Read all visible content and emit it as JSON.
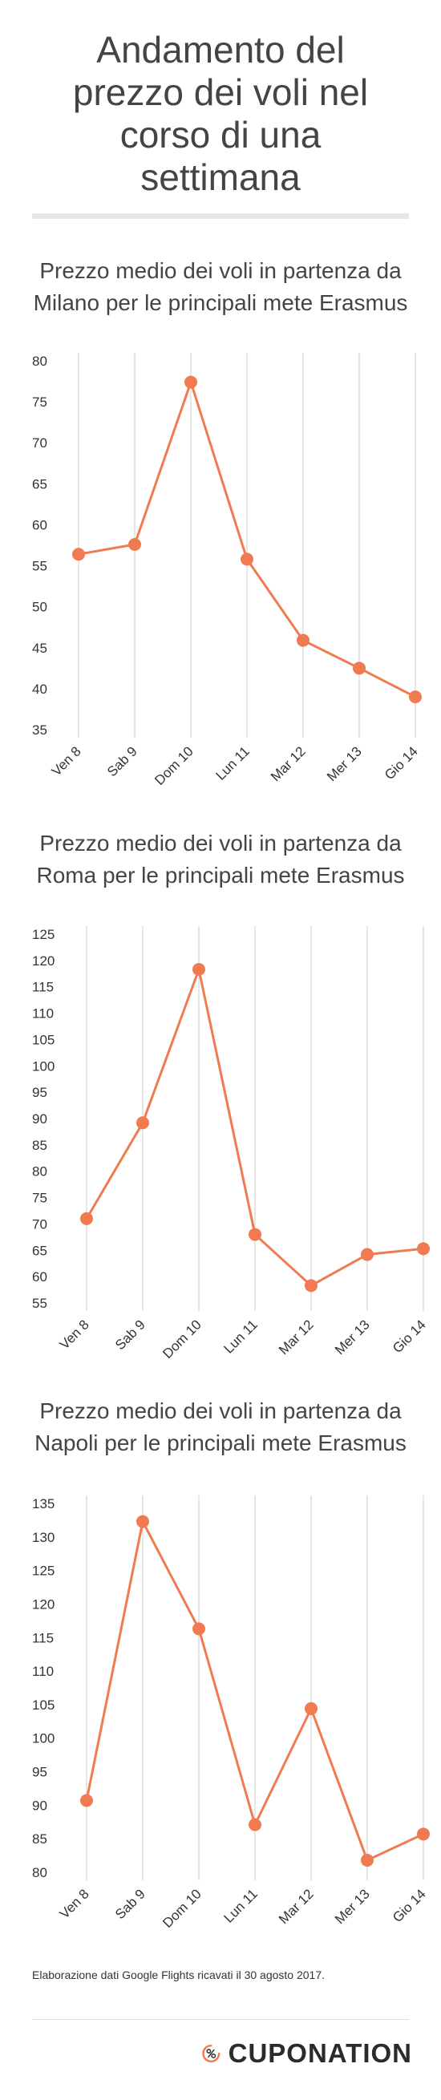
{
  "page": {
    "title": "Andamento del prezzo dei voli nel corso di una settimana",
    "title_lines": [
      "Andamento del",
      "prezzo dei voli nel",
      "corso di una",
      "settimana"
    ]
  },
  "colors": {
    "line": "#f07b50",
    "grid": "#cccccc",
    "text": "#333333"
  },
  "chart_data": [
    {
      "type": "line",
      "title": "Prezzo medio dei voli in partenza da Milano per le principali mete Erasmus",
      "title_lines": [
        "Prezzo medio dei voli in partenza da",
        "Milano per le principali mete Erasmus"
      ],
      "categories": [
        "Ven 8",
        "Sab 9",
        "Dom 10",
        "Lun 11",
        "Mar 12",
        "Mer 13",
        "Gio 14"
      ],
      "values": [
        56.4,
        57.6,
        77.4,
        55.8,
        45.9,
        42.5,
        39.0
      ],
      "ylim": [
        35,
        80
      ],
      "yticks": [
        35,
        40,
        45,
        50,
        55,
        60,
        65,
        70,
        75,
        80
      ],
      "grid": "vertical"
    },
    {
      "type": "line",
      "title": "Prezzo medio dei voli in partenza da Roma per le principali mete Erasmus",
      "title_lines": [
        "Prezzo medio dei voli in partenza da",
        "Roma per le principali mete Erasmus"
      ],
      "categories": [
        "Ven 8",
        "Sab 9",
        "Dom 10",
        "Lun 11",
        "Mar 12",
        "Mer 13",
        "Gio 14"
      ],
      "values": [
        71,
        89.2,
        118.3,
        68,
        58.3,
        64.2,
        65.3
      ],
      "ylim": [
        55,
        125
      ],
      "yticks": [
        55,
        60,
        65,
        70,
        75,
        80,
        85,
        90,
        95,
        100,
        105,
        110,
        115,
        120,
        125
      ],
      "grid": "vertical"
    },
    {
      "type": "line",
      "title": "Prezzo medio dei voli in partenza da Napoli per le principali mete Erasmus",
      "title_lines": [
        "Prezzo medio dei voli in partenza da",
        "Napoli per le principali mete Erasmus"
      ],
      "categories": [
        "Ven 8",
        "Sab 9",
        "Dom 10",
        "Lun 11",
        "Mar 12",
        "Mer 13",
        "Gio 14"
      ],
      "values": [
        90.7,
        132.3,
        116.3,
        87.1,
        104.4,
        81.8,
        85.7
      ],
      "ylim": [
        80,
        135
      ],
      "yticks": [
        80,
        85,
        90,
        95,
        100,
        105,
        110,
        115,
        120,
        125,
        130,
        135
      ],
      "grid": "vertical"
    }
  ],
  "footer": {
    "note": "Elaborazione dati Google Flights ricavati il 30 agosto 2017.",
    "brand": "CUPONATION"
  }
}
